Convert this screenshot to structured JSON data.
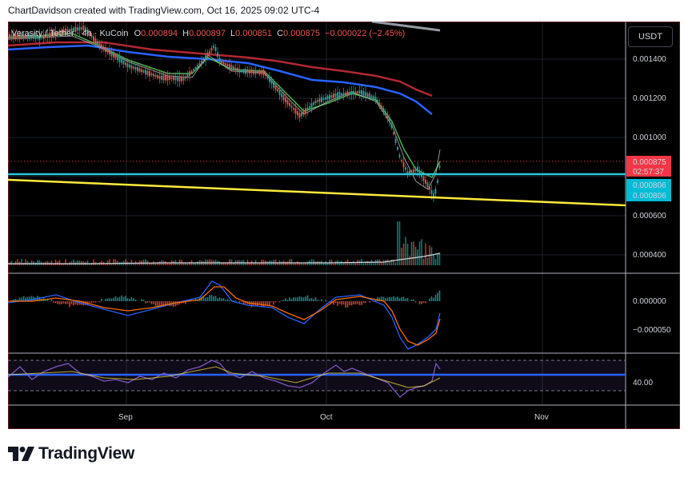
{
  "header": {
    "credit": "ChartDavidson created with TradingView.com, Oct 16, 2025 09:02 UTC-4"
  },
  "legend": {
    "symbol": "Verasity / Tether · 4h · KuCoin",
    "o_label": "O",
    "o": "0.000894",
    "h_label": "H",
    "h": "0.000897",
    "l_label": "L",
    "l": "0.000851",
    "c_label": "C",
    "c": "0.000875",
    "change": "−0.000022 (−2.45%)"
  },
  "currency_button": "USDT",
  "price_axis": {
    "ticks": [
      "0.001400",
      "0.001200",
      "0.001000",
      "0.000600",
      "0.000400"
    ],
    "last_price": "0.000875",
    "countdown": "02:57:37",
    "level_label_1": "0.000806",
    "level_label_2": "0.000806"
  },
  "macd_axis": {
    "ticks": [
      "0.000000",
      "−0.000050"
    ]
  },
  "rsi_axis": {
    "ticks": [
      "40.00"
    ]
  },
  "time_axis": {
    "labels": [
      "Sep",
      "Oct",
      "Nov"
    ]
  },
  "colors": {
    "background": "#000000",
    "up": "#26a69a",
    "down": "#ef5350",
    "ema_fast": "#4caf50",
    "ema_mid": "#2962ff",
    "ema_slow": "#b22833",
    "support": "#26c6da",
    "trendline": "#ffeb3b",
    "rsi": "#7e57c2",
    "last_price_badge": "#f23645",
    "level_badge": "#00bcd4"
  },
  "brand": {
    "name": "TradingView"
  }
}
